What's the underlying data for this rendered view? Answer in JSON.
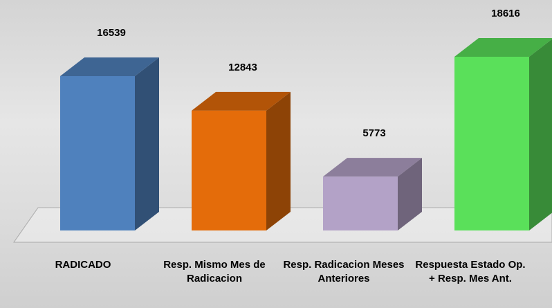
{
  "chart_data": {
    "type": "bar3d",
    "categories": [
      "RADICADO",
      "Resp. Mismo Mes de Radicacion",
      "Resp. Radicacion Meses Anteriores",
      "Respuesta Estado Op. + Resp. Mes Ant."
    ],
    "values": [
      16539,
      12843,
      5773,
      18616
    ],
    "colors": [
      "#4f81bd",
      "#e46c0a",
      "#b3a2c7",
      "#5ae05a"
    ]
  }
}
